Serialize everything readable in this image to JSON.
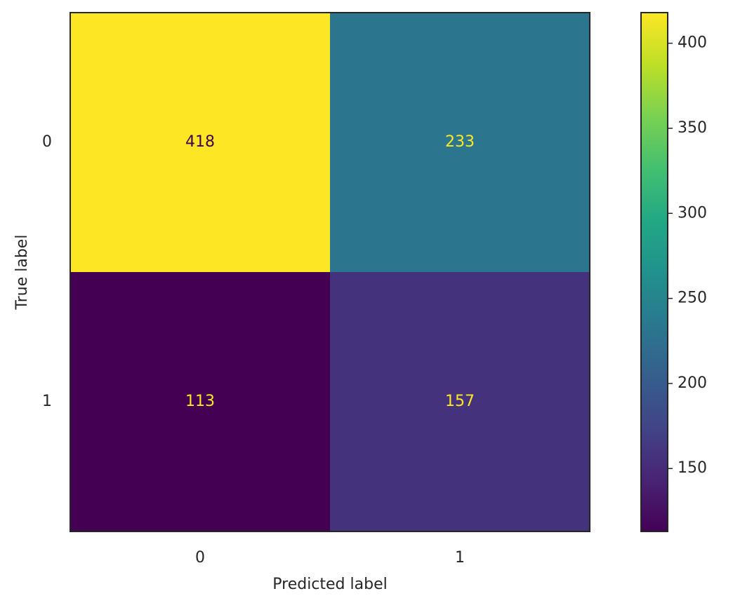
{
  "chart_data": {
    "type": "heatmap",
    "x_categories": [
      "0",
      "1"
    ],
    "y_categories": [
      "0",
      "1"
    ],
    "values": [
      [
        418,
        233
      ],
      [
        113,
        157
      ]
    ],
    "xlabel": "Predicted label",
    "ylabel": "True label",
    "colormap": "viridis",
    "colorbar_lim": [
      113,
      418
    ],
    "colorbar_ticks": [
      150,
      200,
      250,
      300,
      350,
      400
    ]
  }
}
